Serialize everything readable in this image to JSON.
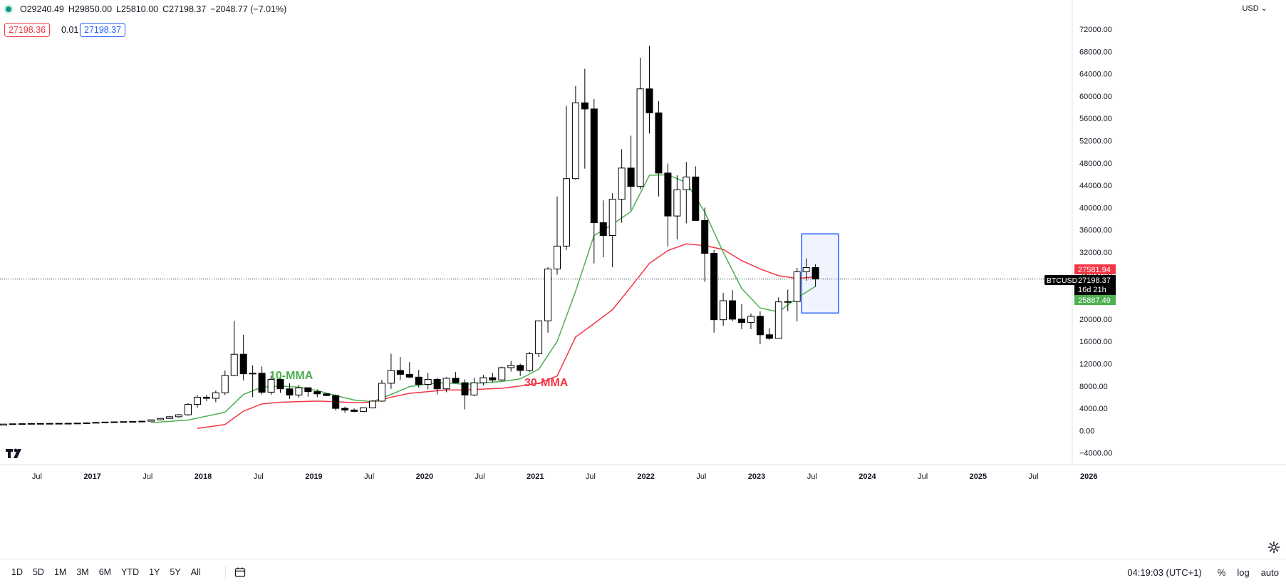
{
  "header": {
    "open": "O29240.49",
    "high": "H29850.00",
    "low": "L25810.00",
    "close": "C27198.37",
    "change": "−2048.77 (−7.01%)",
    "bid": "27198.36",
    "spread": "0.01",
    "ask": "27198.37",
    "currency": "USD"
  },
  "colors": {
    "up_candle": "#ffffff",
    "down_candle": "#000000",
    "ma10": "#4caf50",
    "ma30": "#f23645",
    "box": "#2962ff",
    "box_fill": "rgba(41,98,255,0.07)",
    "text": "#131722",
    "grid_text": "#131722"
  },
  "chart_data": {
    "type": "candlestick",
    "symbol": "BTCUSD",
    "interval": "1M",
    "ylim": [
      -4000,
      72000
    ],
    "y_ticks": [
      "72000.00",
      "68000.00",
      "64000.00",
      "60000.00",
      "56000.00",
      "52000.00",
      "48000.00",
      "44000.00",
      "40000.00",
      "36000.00",
      "32000.00",
      "28000.00",
      "24000.00",
      "20000.00",
      "16000.00",
      "12000.00",
      "8000.00",
      "4000.00",
      "0.00",
      "−4000.00"
    ],
    "x_ticks": [
      "Jul",
      "2017",
      "Jul",
      "2018",
      "Jul",
      "2019",
      "Jul",
      "2020",
      "Jul",
      "2021",
      "Jul",
      "2022",
      "Jul",
      "2023",
      "Jul",
      "2024",
      "Jul",
      "2025",
      "Jul",
      "2026"
    ],
    "candles": [
      [
        0,
        1000,
        1200,
        990,
        1180
      ],
      [
        1,
        1180,
        1250,
        1150,
        1230
      ],
      [
        2,
        1230,
        1270,
        1150,
        1250
      ],
      [
        3,
        1250,
        1300,
        1200,
        1280
      ],
      [
        4,
        1280,
        1310,
        1240,
        1290
      ],
      [
        5,
        1290,
        1320,
        1250,
        1300
      ],
      [
        6,
        1300,
        1320,
        1260,
        1310
      ],
      [
        7,
        1310,
        1330,
        1280,
        1320
      ],
      [
        8,
        1320,
        1360,
        1300,
        1350
      ],
      [
        9,
        1350,
        1420,
        1330,
        1400
      ],
      [
        10,
        1400,
        1500,
        1380,
        1480
      ],
      [
        11,
        1480,
        1560,
        1460,
        1540
      ],
      [
        12,
        1540,
        1600,
        1500,
        1580
      ],
      [
        13,
        1580,
        1650,
        1530,
        1620
      ],
      [
        14,
        1620,
        1700,
        1560,
        1650
      ],
      [
        15,
        1650,
        1750,
        1600,
        1700
      ],
      [
        16,
        1700,
        2000,
        1650,
        1950
      ],
      [
        17,
        1950,
        2250,
        1850,
        2200
      ],
      [
        18,
        2200,
        2600,
        2100,
        2500
      ],
      [
        19,
        2500,
        3000,
        2300,
        2850
      ],
      [
        20,
        2850,
        4900,
        2700,
        4700
      ],
      [
        21,
        4700,
        6400,
        4100,
        6000
      ],
      [
        22,
        6000,
        6400,
        5300,
        5800
      ],
      [
        23,
        5800,
        7200,
        5100,
        6800
      ],
      [
        24,
        6800,
        10800,
        6400,
        9900
      ],
      [
        25,
        9900,
        19700,
        9800,
        13700
      ],
      [
        26,
        13700,
        17200,
        9000,
        10200
      ],
      [
        27,
        10200,
        11700,
        6000,
        10300
      ],
      [
        28,
        10300,
        11500,
        6500,
        6900
      ],
      [
        29,
        6900,
        9900,
        6400,
        9200
      ],
      [
        30,
        9200,
        9900,
        6800,
        7500
      ],
      [
        31,
        7500,
        8500,
        5700,
        6400
      ],
      [
        32,
        6400,
        8200,
        5900,
        7700
      ],
      [
        33,
        7700,
        7800,
        6100,
        7000
      ],
      [
        34,
        7000,
        7400,
        6000,
        6600
      ],
      [
        35,
        6600,
        6700,
        6200,
        6300
      ],
      [
        36,
        6300,
        6500,
        3600,
        4000
      ],
      [
        37,
        4000,
        4300,
        3200,
        3700
      ],
      [
        38,
        3700,
        4000,
        3300,
        3450
      ],
      [
        39,
        3450,
        4200,
        3400,
        4100
      ],
      [
        40,
        4100,
        5500,
        4000,
        5300
      ],
      [
        41,
        5300,
        9100,
        5200,
        8500
      ],
      [
        42,
        8500,
        13800,
        7500,
        10800
      ],
      [
        43,
        10800,
        13200,
        9100,
        10100
      ],
      [
        44,
        10100,
        12300,
        9400,
        9600
      ],
      [
        45,
        9600,
        10900,
        7700,
        8300
      ],
      [
        46,
        8300,
        10400,
        7400,
        9200
      ],
      [
        47,
        9200,
        9500,
        6500,
        7500
      ],
      [
        48,
        7500,
        9600,
        6900,
        9400
      ],
      [
        49,
        9400,
        10500,
        8500,
        8600
      ],
      [
        50,
        8600,
        9200,
        3800,
        6400
      ],
      [
        51,
        6400,
        9500,
        6200,
        8600
      ],
      [
        52,
        8600,
        10000,
        8100,
        9500
      ],
      [
        53,
        9500,
        10400,
        8700,
        9100
      ],
      [
        54,
        9100,
        11500,
        8900,
        11300
      ],
      [
        55,
        11300,
        12500,
        10600,
        11700
      ],
      [
        56,
        11700,
        12000,
        9800,
        10800
      ],
      [
        57,
        10800,
        14100,
        10500,
        13800
      ],
      [
        58,
        13800,
        19500,
        13200,
        19700
      ],
      [
        59,
        19700,
        29300,
        17600,
        29000
      ],
      [
        60,
        29000,
        42000,
        28000,
        33100
      ],
      [
        61,
        33100,
        58300,
        32400,
        45200
      ],
      [
        62,
        45200,
        61800,
        45000,
        58800
      ],
      [
        63,
        58800,
        64900,
        47000,
        57700
      ],
      [
        64,
        57700,
        59500,
        30000,
        37300
      ],
      [
        65,
        37300,
        41300,
        31100,
        35000
      ],
      [
        66,
        35000,
        42600,
        29300,
        41500
      ],
      [
        67,
        41500,
        50500,
        37300,
        47100
      ],
      [
        68,
        47100,
        52900,
        39600,
        43800
      ],
      [
        69,
        43800,
        66900,
        43300,
        61300
      ],
      [
        70,
        61300,
        69000,
        53300,
        57000
      ],
      [
        71,
        57000,
        59100,
        42000,
        46200
      ],
      [
        72,
        46200,
        47900,
        33000,
        38500
      ],
      [
        73,
        38500,
        45800,
        34300,
        43200
      ],
      [
        74,
        43200,
        48200,
        37200,
        45500
      ],
      [
        75,
        45500,
        47400,
        37700,
        37700
      ],
      [
        76,
        37700,
        40000,
        26700,
        31800
      ],
      [
        77,
        31800,
        32400,
        17600,
        19900
      ],
      [
        78,
        19900,
        24700,
        18800,
        23300
      ],
      [
        79,
        23300,
        25200,
        19600,
        20000
      ],
      [
        80,
        20000,
        22700,
        18200,
        19400
      ],
      [
        81,
        19400,
        21000,
        18200,
        20500
      ],
      [
        82,
        20500,
        21400,
        15500,
        17200
      ],
      [
        83,
        17200,
        18400,
        16300,
        16550
      ],
      [
        84,
        16550,
        23900,
        16500,
        23100
      ],
      [
        85,
        23100,
        25300,
        21400,
        23150
      ],
      [
        86,
        23150,
        29200,
        19600,
        28500
      ],
      [
        87,
        28500,
        30900,
        26900,
        29250
      ],
      [
        88,
        29250,
        29850,
        25810,
        27198
      ]
    ],
    "ma10": [
      [
        16,
        1430
      ],
      [
        20,
        1900
      ],
      [
        24,
        3300
      ],
      [
        26,
        6500
      ],
      [
        28,
        7800
      ],
      [
        30,
        8000
      ],
      [
        32,
        7800
      ],
      [
        34,
        7200
      ],
      [
        36,
        6300
      ],
      [
        38,
        5500
      ],
      [
        40,
        5200
      ],
      [
        42,
        6500
      ],
      [
        44,
        7900
      ],
      [
        46,
        8400
      ],
      [
        48,
        8600
      ],
      [
        50,
        8300
      ],
      [
        52,
        8600
      ],
      [
        54,
        8800
      ],
      [
        56,
        9300
      ],
      [
        58,
        11000
      ],
      [
        60,
        16000
      ],
      [
        62,
        25000
      ],
      [
        64,
        35000
      ],
      [
        66,
        37000
      ],
      [
        68,
        39300
      ],
      [
        70,
        45800
      ],
      [
        72,
        45900
      ],
      [
        74,
        44500
      ],
      [
        76,
        39200
      ],
      [
        78,
        32000
      ],
      [
        80,
        25500
      ],
      [
        82,
        22000
      ],
      [
        84,
        21300
      ],
      [
        86,
        23800
      ],
      [
        88,
        25887
      ]
    ],
    "ma30": [
      [
        21,
        400
      ],
      [
        24,
        1100
      ],
      [
        26,
        3500
      ],
      [
        28,
        4800
      ],
      [
        30,
        5100
      ],
      [
        34,
        5300
      ],
      [
        36,
        5200
      ],
      [
        38,
        5000
      ],
      [
        40,
        5100
      ],
      [
        42,
        6000
      ],
      [
        44,
        6700
      ],
      [
        46,
        7000
      ],
      [
        48,
        7300
      ],
      [
        50,
        7300
      ],
      [
        54,
        7600
      ],
      [
        56,
        8000
      ],
      [
        58,
        8500
      ],
      [
        60,
        9800
      ],
      [
        62,
        16800
      ],
      [
        64,
        19200
      ],
      [
        66,
        21700
      ],
      [
        68,
        25800
      ],
      [
        70,
        30000
      ],
      [
        72,
        32300
      ],
      [
        74,
        33500
      ],
      [
        76,
        33200
      ],
      [
        78,
        32500
      ],
      [
        80,
        30500
      ],
      [
        82,
        29000
      ],
      [
        84,
        27800
      ],
      [
        86,
        27300
      ],
      [
        88,
        27582
      ]
    ],
    "price_labels": {
      "ma30": "27581.94",
      "last": "27198.37",
      "countdown": "16d 21h",
      "ma10": "25887.49",
      "symbol": "BTCUSD"
    },
    "annotations": {
      "ma10_label": "10-MMA",
      "ma30_label": "30-MMA"
    },
    "highlight_box": {
      "x0": 86.5,
      "x1": 90.5,
      "y_high": 35300,
      "y_low": 21100
    }
  },
  "toolbar": {
    "ranges": [
      "1D",
      "5D",
      "1M",
      "3M",
      "6M",
      "YTD",
      "1Y",
      "5Y",
      "All"
    ],
    "time": "04:19:03 (UTC+1)",
    "percent": "%",
    "log": "log",
    "auto": "auto"
  }
}
